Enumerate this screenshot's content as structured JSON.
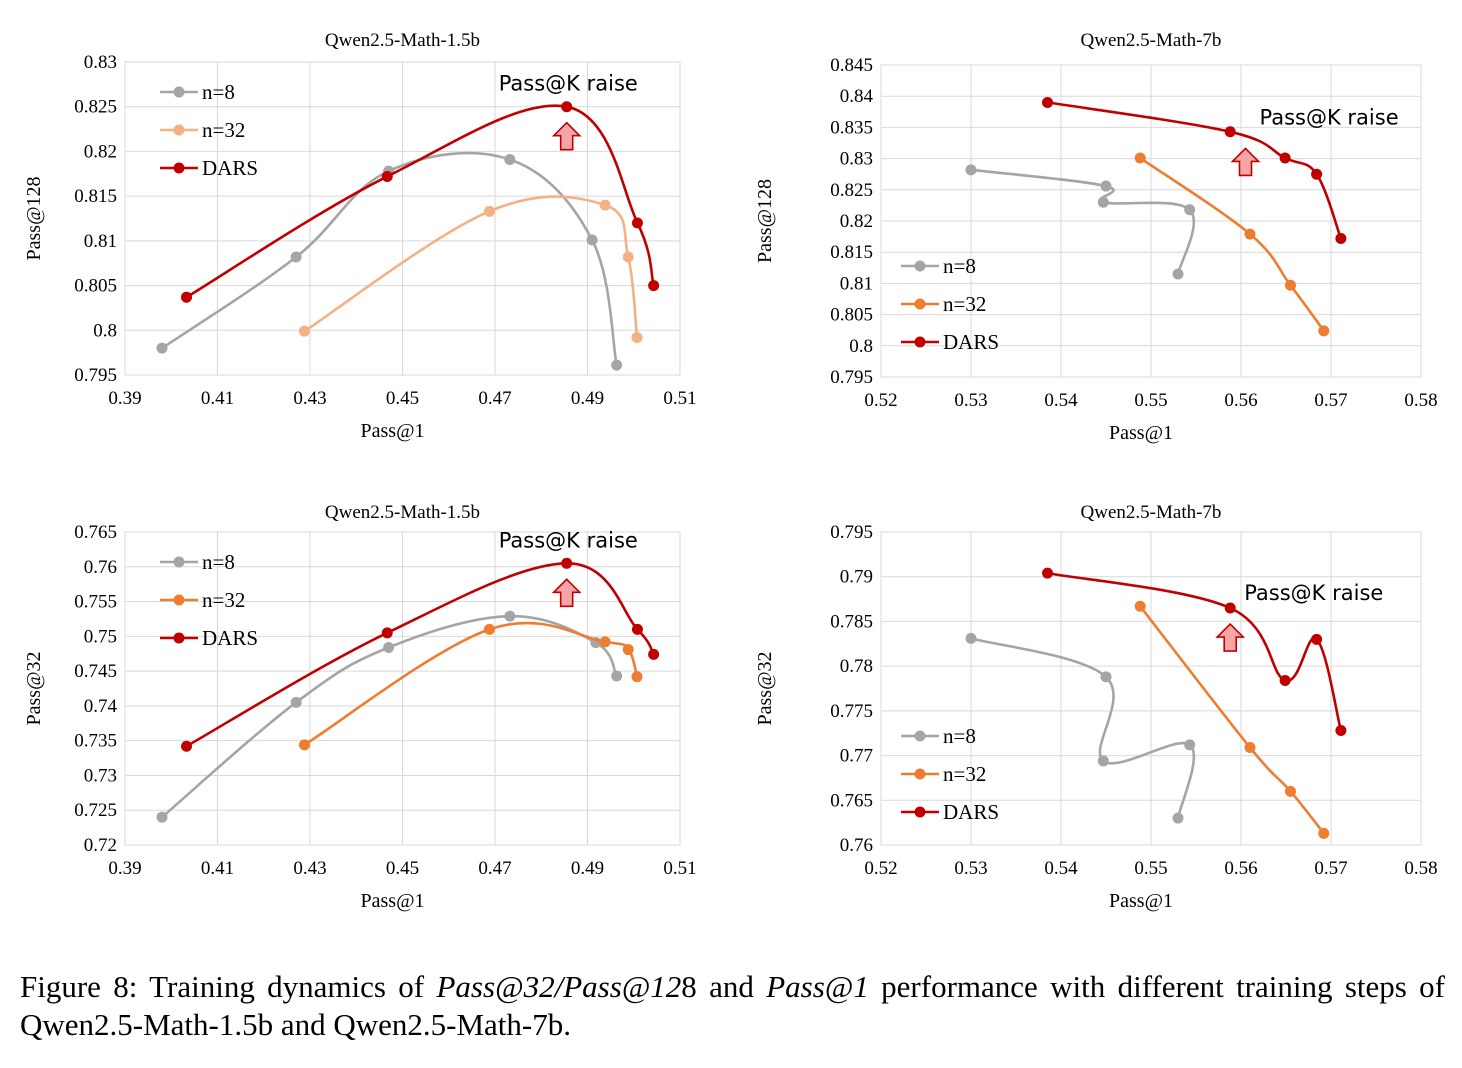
{
  "figure": {
    "caption": {
      "prefix": "Figure 8: Training dynamics of ",
      "metric_a": "Pass@32",
      "slash": "/",
      "metric_b": "Pass@12",
      "num_tail": "8",
      "and_text": " and ",
      "metric_c": "Pass@1",
      "suffix": " performance with different training steps of Qwen2.5-Math-1.5b and Qwen2.5-Math-7b."
    }
  },
  "colors": {
    "n8": "#a5a5a5",
    "n32_light": "#f4b183",
    "n32": "#ed7d31",
    "dars": "#c00000",
    "arrow_fill": "#f4a6a6"
  },
  "chart_data": [
    {
      "type": "line",
      "title": "Qwen2.5-Math-1.5b",
      "xlabel": "Pass@1",
      "ylabel": "Pass@128",
      "xlim": [
        0.39,
        0.51
      ],
      "ylim": [
        0.795,
        0.83
      ],
      "xticks": [
        "0.39",
        "0.41",
        "0.43",
        "0.45",
        "0.47",
        "0.49",
        "0.51"
      ],
      "yticks": [
        "0.795",
        "0.8",
        "0.805",
        "0.81",
        "0.815",
        "0.82",
        "0.825",
        "0.83"
      ],
      "grid": true,
      "legend": "top-left",
      "annotation": {
        "text": "Pass@K raise",
        "x": 0.4855,
        "y": 0.825
      },
      "series": [
        {
          "name": "n=8",
          "color": "#a5a5a5",
          "x": [
            0.398,
            0.427,
            0.447,
            0.4732,
            0.491,
            0.4963
          ],
          "y": [
            0.798,
            0.8082,
            0.8178,
            0.8191,
            0.8101,
            0.7961
          ]
        },
        {
          "name": "n=32",
          "color": "#f4b183",
          "x": [
            0.4288,
            0.4688,
            0.4938,
            0.4988,
            0.5007
          ],
          "y": [
            0.7999,
            0.8133,
            0.814,
            0.8082,
            0.7992
          ]
        },
        {
          "name": "DARS",
          "color": "#c00000",
          "x": [
            0.4033,
            0.4467,
            0.4855,
            0.5008,
            0.5043
          ],
          "y": [
            0.8037,
            0.8172,
            0.825,
            0.812,
            0.805
          ]
        }
      ]
    },
    {
      "type": "line",
      "title": "Qwen2.5-Math-7b",
      "xlabel": "Pass@1",
      "ylabel": "Pass@128",
      "xlim": [
        0.52,
        0.58
      ],
      "ylim": [
        0.795,
        0.845
      ],
      "xticks": [
        "0.52",
        "0.53",
        "0.54",
        "0.55",
        "0.56",
        "0.57",
        "0.58"
      ],
      "yticks": [
        "0.795",
        "0.8",
        "0.805",
        "0.81",
        "0.815",
        "0.82",
        "0.825",
        "0.83",
        "0.835",
        "0.84",
        "0.845"
      ],
      "grid": true,
      "legend": "bottom-left",
      "annotation": {
        "text": "Pass@K raise",
        "x": 0.5605,
        "y": 0.8342
      },
      "series": [
        {
          "name": "n=8",
          "color": "#a5a5a5",
          "x": [
            0.53,
            0.545,
            0.5447,
            0.5543,
            0.553
          ],
          "y": [
            0.8282,
            0.8256,
            0.823,
            0.8218,
            0.8115
          ]
        },
        {
          "name": "n=32",
          "color": "#ed7d31",
          "x": [
            0.5488,
            0.561,
            0.5655,
            0.5692
          ],
          "y": [
            0.8301,
            0.8179,
            0.8097,
            0.8024
          ]
        },
        {
          "name": "DARS",
          "color": "#c00000",
          "x": [
            0.5385,
            0.5588,
            0.5649,
            0.5684,
            0.5711
          ],
          "y": [
            0.839,
            0.8343,
            0.8301,
            0.8275,
            0.8172
          ]
        }
      ]
    },
    {
      "type": "line",
      "title": "Qwen2.5-Math-1.5b",
      "xlabel": "Pass@1",
      "ylabel": "Pass@32",
      "xlim": [
        0.39,
        0.51
      ],
      "ylim": [
        0.72,
        0.765
      ],
      "xticks": [
        "0.39",
        "0.41",
        "0.43",
        "0.45",
        "0.47",
        "0.49",
        "0.51"
      ],
      "yticks": [
        "0.72",
        "0.725",
        "0.73",
        "0.735",
        "0.74",
        "0.745",
        "0.75",
        "0.755",
        "0.76",
        "0.765"
      ],
      "grid": true,
      "legend": "top-left",
      "annotation": {
        "text": "Pass@K raise",
        "x": 0.4855,
        "y": 0.7605
      },
      "series": [
        {
          "name": "n=8",
          "color": "#a5a5a5",
          "x": [
            0.398,
            0.427,
            0.447,
            0.4732,
            0.4918,
            0.4963
          ],
          "y": [
            0.724,
            0.7405,
            0.7484,
            0.7529,
            0.7491,
            0.7443
          ]
        },
        {
          "name": "n=32",
          "color": "#ed7d31",
          "x": [
            0.4288,
            0.4688,
            0.4938,
            0.4988,
            0.5007
          ],
          "y": [
            0.7344,
            0.751,
            0.7492,
            0.7481,
            0.7442
          ]
        },
        {
          "name": "DARS",
          "color": "#c00000",
          "x": [
            0.4033,
            0.4467,
            0.4855,
            0.5008,
            0.5043
          ],
          "y": [
            0.7342,
            0.7505,
            0.7605,
            0.751,
            0.7474
          ]
        }
      ]
    },
    {
      "type": "line",
      "title": "Qwen2.5-Math-7b",
      "xlabel": "Pass@1",
      "ylabel": "Pass@32",
      "xlim": [
        0.52,
        0.58
      ],
      "ylim": [
        0.76,
        0.795
      ],
      "xticks": [
        "0.52",
        "0.53",
        "0.54",
        "0.55",
        "0.56",
        "0.57",
        "0.58"
      ],
      "yticks": [
        "0.76",
        "0.765",
        "0.77",
        "0.775",
        "0.78",
        "0.785",
        "0.79",
        "0.795"
      ],
      "grid": true,
      "legend": "bottom-left",
      "annotation": {
        "text": "Pass@K raise",
        "x": 0.5588,
        "y": 0.7865
      },
      "series": [
        {
          "name": "n=8",
          "color": "#a5a5a5",
          "x": [
            0.53,
            0.545,
            0.5447,
            0.5543,
            0.553
          ],
          "y": [
            0.7831,
            0.7788,
            0.7694,
            0.7712,
            0.763
          ]
        },
        {
          "name": "n=32",
          "color": "#ed7d31",
          "x": [
            0.5488,
            0.561,
            0.5655,
            0.5692
          ],
          "y": [
            0.7867,
            0.7709,
            0.766,
            0.7613
          ]
        },
        {
          "name": "DARS",
          "color": "#c00000",
          "x": [
            0.5385,
            0.5588,
            0.5649,
            0.5684,
            0.5711
          ],
          "y": [
            0.7904,
            0.7865,
            0.7784,
            0.783,
            0.7728
          ]
        }
      ]
    }
  ]
}
